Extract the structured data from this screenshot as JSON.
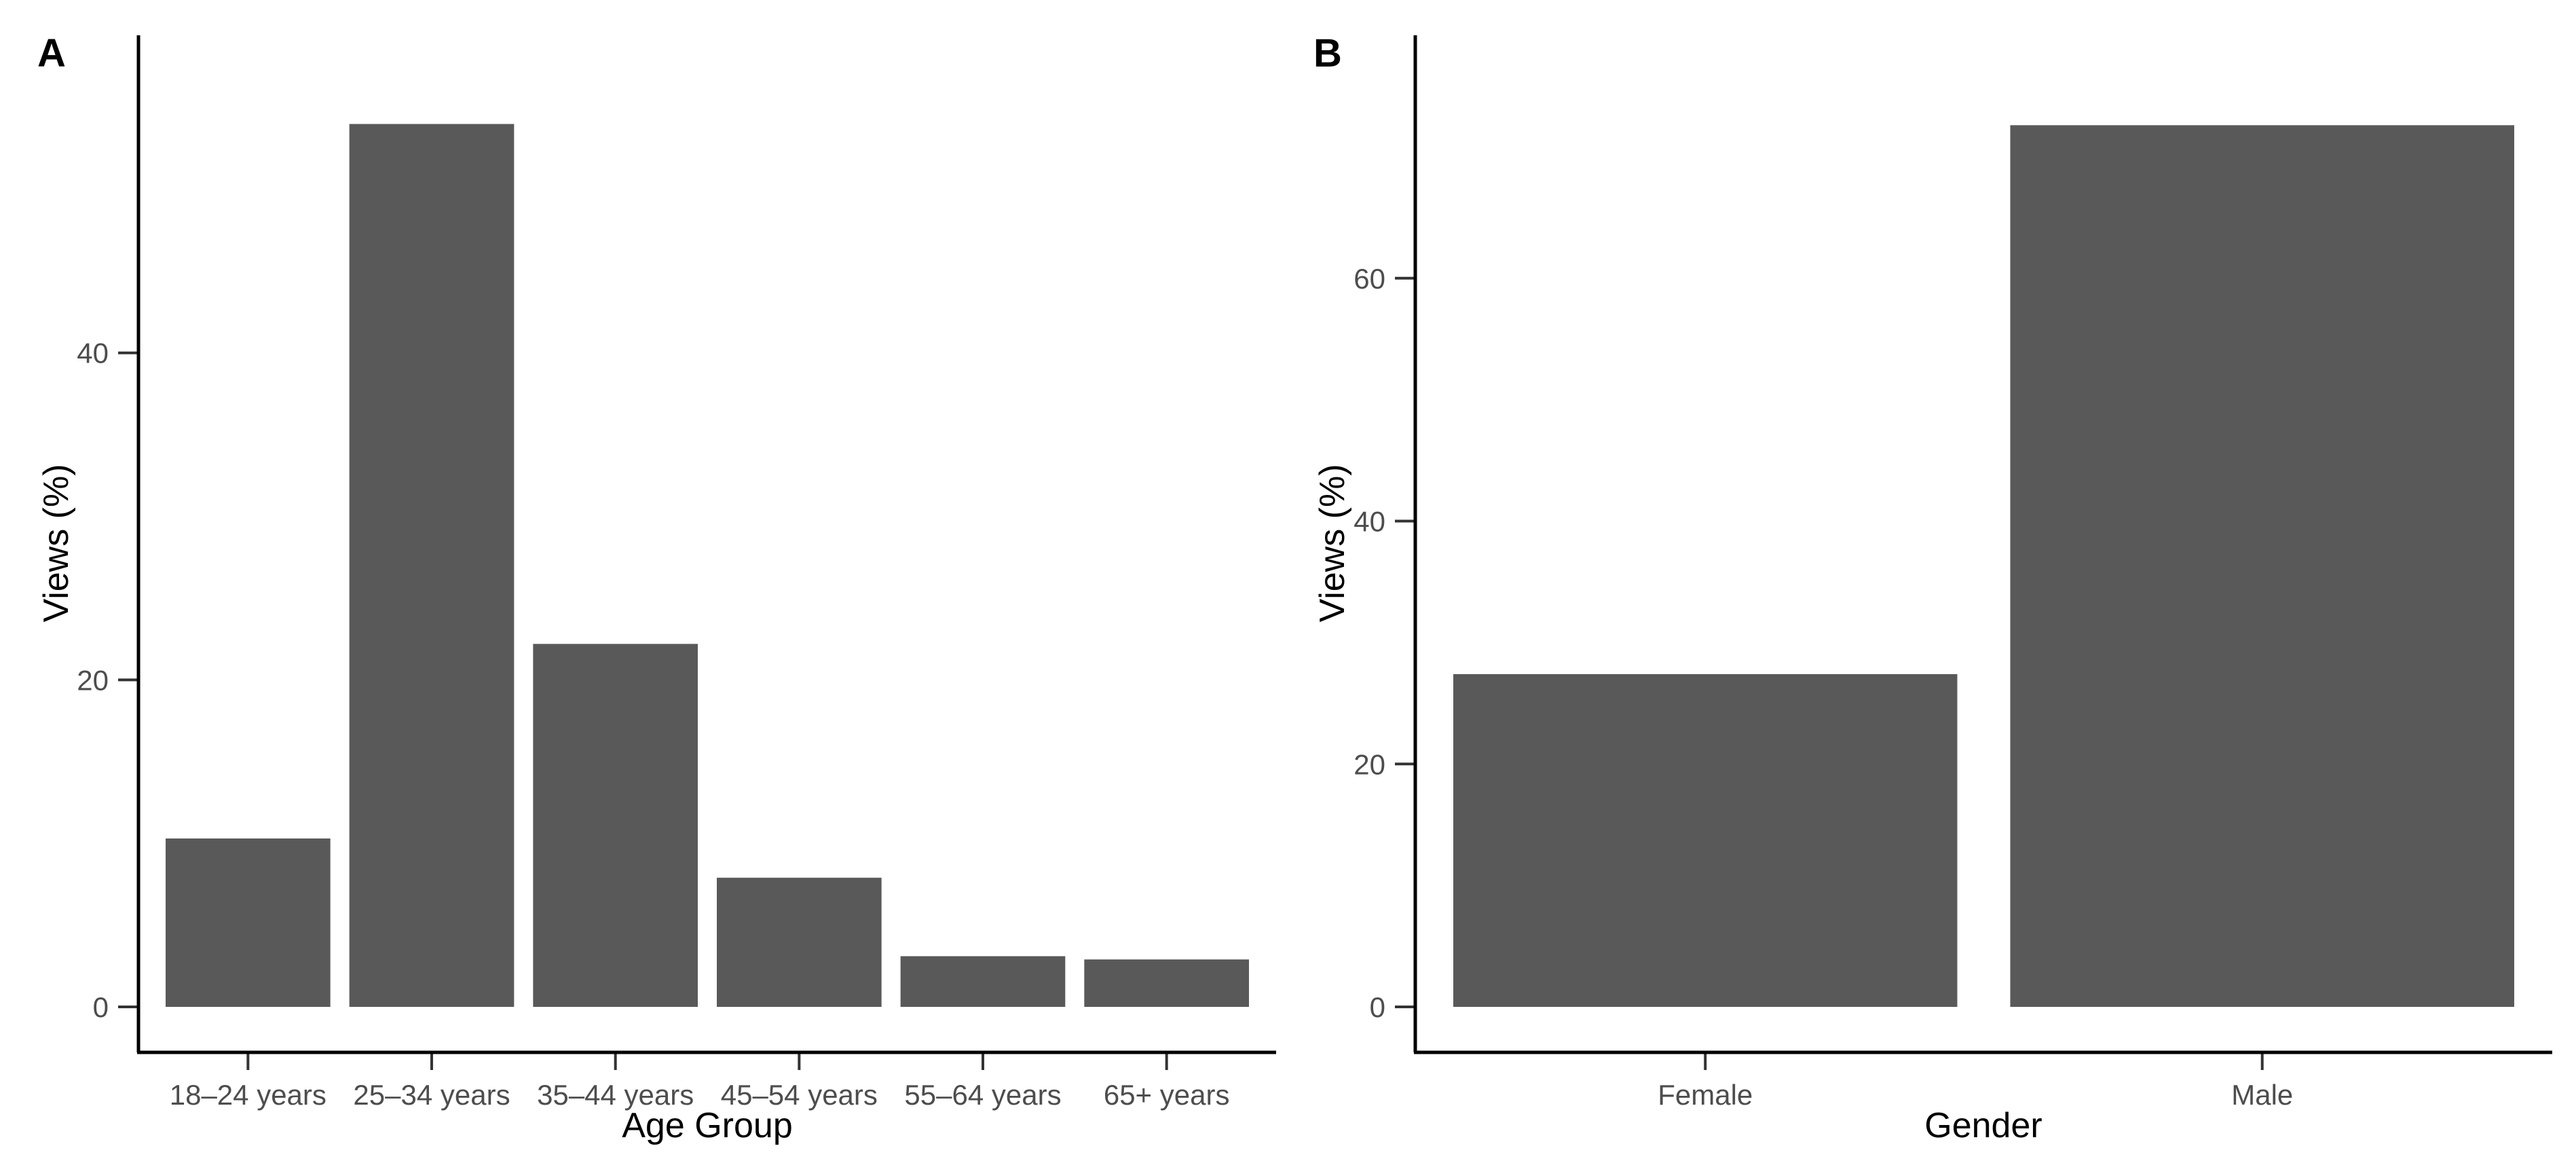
{
  "figure": {
    "background": "#ffffff",
    "bar_color": "#595959",
    "axis_color": "#000000",
    "tick_label_color": "#4d4d4d"
  },
  "chart_data": [
    {
      "panel_label": "A",
      "type": "bar",
      "categories": [
        "18–24 years",
        "25–34 years",
        "35–44 years",
        "45–54 years",
        "55–64 years",
        "65+ years"
      ],
      "values": [
        10.3,
        54.0,
        22.2,
        7.9,
        3.1,
        2.9
      ],
      "xlabel": "Age Group",
      "ylabel": "Views (%)",
      "yticks": [
        0,
        20,
        40
      ],
      "ylim": [
        0,
        56.6
      ],
      "grid": false,
      "legend": "none"
    },
    {
      "panel_label": "B",
      "type": "bar",
      "categories": [
        "Female",
        "Male"
      ],
      "values": [
        27.4,
        72.6
      ],
      "xlabel": "Gender",
      "ylabel": "Views (%)",
      "yticks": [
        0,
        20,
        40,
        60
      ],
      "ylim": [
        0,
        76.2
      ],
      "grid": false,
      "legend": "none"
    }
  ]
}
